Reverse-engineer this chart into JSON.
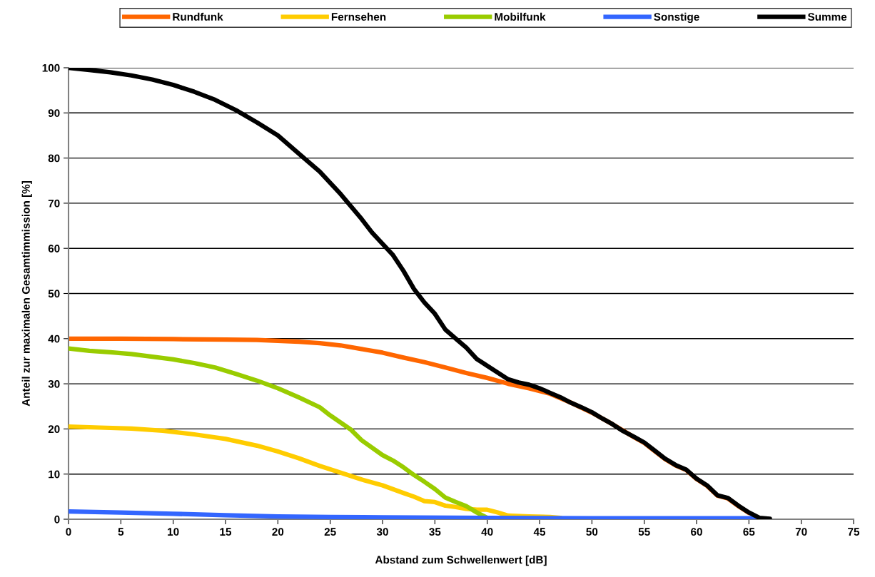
{
  "chart_data": {
    "type": "line",
    "xlabel": "Abstand zum Schwellenwert [dB]",
    "ylabel": "Anteil zur maximalen Gesamtimmission [%]",
    "xlim": [
      0,
      75
    ],
    "xticks": [
      0,
      5,
      10,
      15,
      20,
      25,
      30,
      35,
      40,
      45,
      50,
      55,
      60,
      65,
      70,
      75
    ],
    "ylim": [
      0,
      100
    ],
    "yticks": [
      0,
      10,
      20,
      30,
      40,
      50,
      60,
      70,
      80,
      90,
      100
    ],
    "grid": "y",
    "legend": "top",
    "marker": "none",
    "line_style": "solid",
    "series": [
      {
        "name": "Rundfunk",
        "color": "#ff6600",
        "x": [
          0,
          5,
          10,
          15,
          18,
          20,
          22,
          24,
          26,
          28,
          30,
          32,
          34,
          36,
          38,
          40,
          42,
          44,
          46,
          48,
          50,
          52,
          54,
          55,
          56,
          57,
          58,
          59,
          60,
          61,
          62,
          63,
          64,
          65
        ],
        "values": [
          40,
          40,
          39.9,
          39.8,
          39.7,
          39.5,
          39.3,
          39,
          38.5,
          37.7,
          36.9,
          35.8,
          34.8,
          33.6,
          32.4,
          31.3,
          30,
          29,
          27.8,
          25.8,
          23.6,
          21,
          18.2,
          16.9,
          15.1,
          13.3,
          11.9,
          10.9,
          8.9,
          7.4,
          5.2,
          4.6,
          2.9,
          1.4
        ]
      },
      {
        "name": "Fernsehen",
        "color": "#ffcc00",
        "x": [
          0,
          3,
          6,
          9,
          12,
          15,
          18,
          20,
          22,
          24,
          26,
          28,
          30,
          32,
          33,
          34,
          35,
          36,
          37,
          38,
          39,
          40,
          41,
          42,
          44,
          46,
          47
        ],
        "values": [
          20.5,
          20.3,
          20.1,
          19.6,
          18.8,
          17.8,
          16.3,
          15,
          13.5,
          11.8,
          10.3,
          8.8,
          7.5,
          5.8,
          5,
          4,
          3.8,
          3,
          2.7,
          2.3,
          2.1,
          2.1,
          1.5,
          0.8,
          0.6,
          0.5,
          0.3
        ]
      },
      {
        "name": "Mobilfunk",
        "color": "#99cc00",
        "x": [
          0,
          2,
          4,
          6,
          8,
          10,
          12,
          14,
          16,
          18,
          20,
          22,
          24,
          25,
          27,
          28,
          30,
          31,
          32,
          33,
          34,
          35,
          36,
          37,
          38,
          39,
          40,
          41
        ],
        "values": [
          37.8,
          37.3,
          37,
          36.6,
          36,
          35.4,
          34.6,
          33.6,
          32.2,
          30.7,
          29,
          27,
          24.8,
          23,
          19.8,
          17.5,
          14.2,
          13,
          11.5,
          9.8,
          8.3,
          6.7,
          4.8,
          3.8,
          2.9,
          1.5,
          0.3,
          0.1
        ]
      },
      {
        "name": "Sonstige",
        "color": "#3366ff",
        "x": [
          0,
          5,
          10,
          15,
          20,
          25,
          30,
          40,
          50,
          60,
          66
        ],
        "values": [
          1.7,
          1.5,
          1.2,
          0.9,
          0.6,
          0.5,
          0.4,
          0.3,
          0.2,
          0.2,
          0.2
        ]
      },
      {
        "name": "Summe",
        "color": "#000000",
        "x": [
          0,
          2,
          4,
          6,
          8,
          10,
          12,
          14,
          16,
          18,
          20,
          22,
          24,
          26,
          28,
          29,
          30,
          31,
          32,
          33,
          34,
          35,
          36,
          37,
          38,
          39,
          40,
          41,
          42,
          43,
          44,
          45,
          46,
          47,
          48,
          49,
          50,
          51,
          52,
          53,
          54,
          55,
          56,
          57,
          58,
          59,
          60,
          61,
          62,
          63,
          64,
          65,
          66,
          67
        ],
        "values": [
          100,
          99.5,
          99,
          98.3,
          97.4,
          96.2,
          94.7,
          92.9,
          90.6,
          87.9,
          85,
          81,
          77,
          72,
          66.5,
          63.5,
          61,
          58.5,
          55,
          51,
          48,
          45.5,
          42,
          40,
          38,
          35.5,
          34,
          32.5,
          31,
          30.3,
          29.8,
          29,
          28,
          27,
          25.8,
          24.8,
          23.7,
          22.3,
          21,
          19.5,
          18.3,
          17,
          15.2,
          13.4,
          12,
          11,
          9,
          7.5,
          5.3,
          4.7,
          3,
          1.5,
          0.3,
          0.1
        ]
      }
    ]
  }
}
